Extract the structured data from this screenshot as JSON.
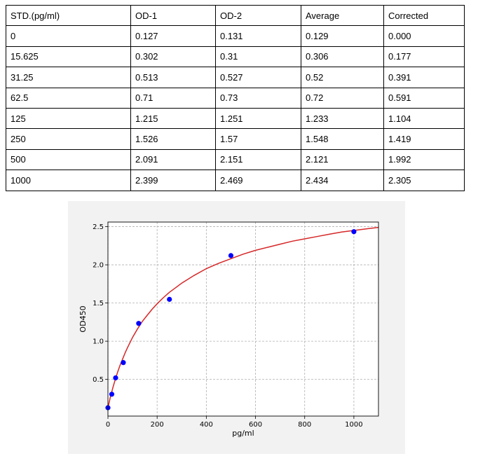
{
  "table": {
    "headers": [
      "STD.(pg/ml)",
      "OD-1",
      "OD-2",
      "Average",
      "Corrected"
    ],
    "rows": [
      [
        "0",
        "0.127",
        "0.131",
        "0.129",
        "0.000"
      ],
      [
        "15.625",
        "0.302",
        "0.31",
        "0.306",
        "0.177"
      ],
      [
        "31.25",
        "0.513",
        "0.527",
        "0.52",
        "0.391"
      ],
      [
        "62.5",
        "0.71",
        "0.73",
        "0.72",
        "0.591"
      ],
      [
        "125",
        "1.215",
        "1.251",
        "1.233",
        "1.104"
      ],
      [
        "250",
        "1.526",
        "1.57",
        "1.548",
        "1.419"
      ],
      [
        "500",
        "2.091",
        "2.151",
        "2.121",
        "1.992"
      ],
      [
        "1000",
        "2.399",
        "2.469",
        "2.434",
        "2.305"
      ]
    ]
  },
  "chart_data": {
    "type": "scatter",
    "title": "",
    "xlabel": "pg/ml",
    "ylabel": "OD450",
    "xlim": [
      0,
      1100
    ],
    "ylim": [
      0.02,
      2.56
    ],
    "xticks": [
      0,
      200,
      400,
      600,
      800,
      1000
    ],
    "yticks": [
      0.5,
      1.0,
      1.5,
      2.0,
      2.5
    ],
    "ytick_labels": [
      "0.5",
      "1.0",
      "1.5",
      "2.0",
      "2.5"
    ],
    "grid": true,
    "series": [
      {
        "type": "scatter",
        "x": [
          0,
          15.625,
          31.25,
          62.5,
          125,
          250,
          500,
          1000
        ],
        "y": [
          0.129,
          0.306,
          0.52,
          0.72,
          1.233,
          1.548,
          2.121,
          2.434
        ],
        "color": "#0000ff"
      },
      {
        "type": "line",
        "x": [
          0,
          5,
          10,
          15,
          20,
          30,
          40,
          50,
          60,
          70,
          80,
          100,
          120,
          140,
          160,
          180,
          200,
          225,
          250,
          275,
          300,
          350,
          400,
          450,
          500,
          550,
          600,
          650,
          700,
          750,
          800,
          850,
          900,
          950,
          1000,
          1050,
          1100
        ],
        "y": [
          0.13,
          0.2,
          0.27,
          0.33,
          0.39,
          0.5,
          0.6,
          0.69,
          0.77,
          0.85,
          0.92,
          1.05,
          1.16,
          1.26,
          1.34,
          1.42,
          1.49,
          1.57,
          1.64,
          1.7,
          1.76,
          1.86,
          1.95,
          2.02,
          2.08,
          2.14,
          2.19,
          2.23,
          2.27,
          2.31,
          2.34,
          2.37,
          2.4,
          2.43,
          2.45,
          2.47,
          2.49
        ],
        "color": "#d62728"
      }
    ]
  }
}
